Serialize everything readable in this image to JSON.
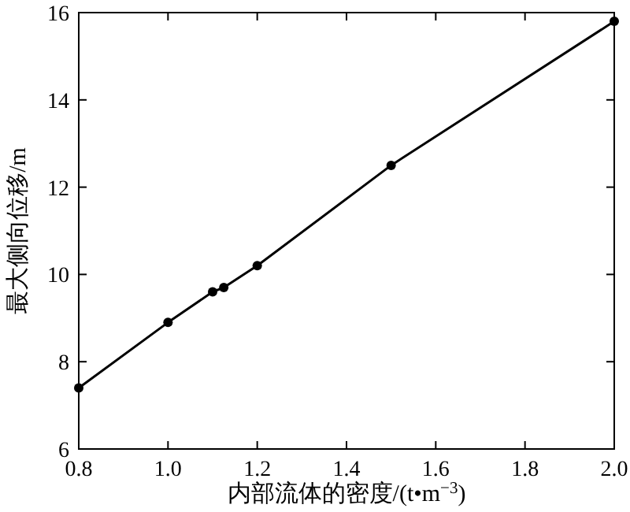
{
  "chart_data": {
    "type": "line",
    "xlabel": "内部流体的密度/(t•m$^{−3}$)",
    "ylabel": "最大侧向位移/m",
    "x": [
      0.8,
      1.0,
      1.1,
      1.125,
      1.2,
      1.5,
      2.0
    ],
    "series": [
      {
        "color": "#000000",
        "values": [
          7.4,
          8.9,
          9.6,
          9.7,
          10.2,
          12.5,
          15.8
        ]
      }
    ],
    "xlim": [
      0.8,
      2.0
    ],
    "xticks": [
      0.8,
      {
        "value": 1,
        "label": "1.0"
      },
      1.2,
      1.4,
      1.6,
      1.8,
      {
        "value": 2,
        "label": "2.0"
      }
    ],
    "ylim": [
      6,
      16
    ],
    "yticks": [
      6,
      8,
      10,
      12,
      14,
      16
    ],
    "marker": "circle",
    "line_style": "solid"
  }
}
